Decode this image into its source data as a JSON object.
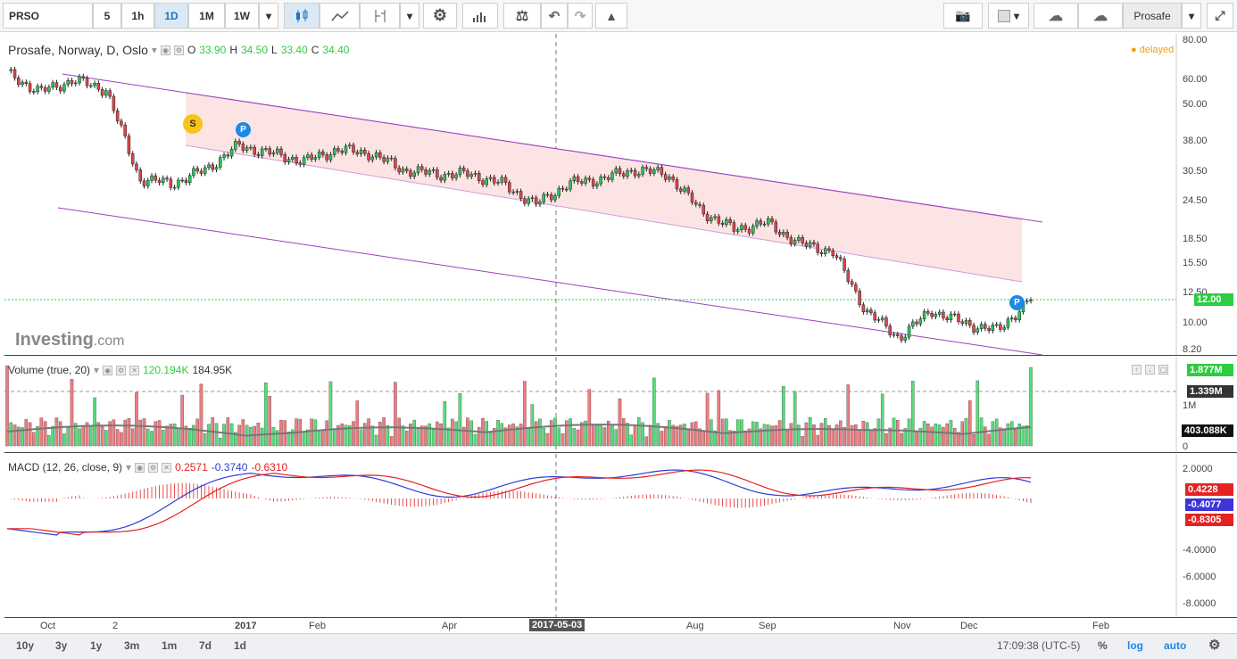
{
  "toolbar": {
    "symbol": "PRSO",
    "intervals": [
      "5",
      "1h",
      "1D",
      "1M",
      "1W"
    ],
    "active_interval": "1D",
    "profile": "Prosafe"
  },
  "main": {
    "title": "Prosafe, Norway, D, Oslo",
    "ohlc": {
      "o_label": "O",
      "o": "33.90",
      "h_label": "H",
      "h": "34.50",
      "l_label": "L",
      "l": "33.40",
      "c_label": "C",
      "c": "34.40"
    },
    "status": "delayed",
    "watermark": "Investing",
    "watermark_suffix": ".com"
  },
  "price_axis": {
    "ticks": [
      "80.00",
      "60.00",
      "50.00",
      "38.00",
      "30.50",
      "24.50",
      "18.50",
      "15.50",
      "12.50",
      "10.00",
      "8.20"
    ],
    "last": "12.00"
  },
  "markers": {
    "s": "S",
    "p": "P"
  },
  "volume": {
    "title": "Volume (true, 20)",
    "v1": "120.194K",
    "v2": "184.95K",
    "ticks": [
      "1M",
      "0"
    ],
    "tag_top": "1.877M",
    "tag_mid": "1.339M",
    "tag_ma": "403.088K"
  },
  "macd": {
    "title": "MACD (12, 26, close, 9)",
    "v1": "0.2571",
    "v2": "-0.3740",
    "v3": "-0.6310",
    "ticks": [
      "2.0000",
      "-4.0000",
      "-6.0000",
      "-8.0000"
    ],
    "tag_hist": "0.4228",
    "tag_macd": "-0.4077",
    "tag_signal": "-0.8305"
  },
  "time_axis": {
    "labels": [
      "Oct",
      "2",
      "2017",
      "Feb",
      "Apr",
      "Aug",
      "Sep",
      "Nov",
      "Dec",
      "Feb"
    ],
    "cursor": "2017-05-03"
  },
  "bottom": {
    "ranges": [
      "10y",
      "3y",
      "1y",
      "3m",
      "1m",
      "7d",
      "1d"
    ],
    "clock": "17:09:38 (UTC-5)",
    "pct": "%",
    "log": "log",
    "auto": "auto"
  },
  "colors": {
    "up": "#26c95b",
    "down": "#e0464b",
    "macd": "#2b3ed6",
    "signal": "#e52222",
    "channel": "#9b3fbf",
    "fill": "#fde4e4"
  },
  "chart_data": {
    "type": "candlestick",
    "approx_close": [
      [
        0,
        63
      ],
      [
        1,
        55
      ],
      [
        2,
        60
      ],
      [
        3,
        56
      ],
      [
        4,
        29
      ],
      [
        5,
        28
      ],
      [
        6,
        31
      ],
      [
        7,
        37
      ],
      [
        8,
        35
      ],
      [
        9,
        33
      ],
      [
        10,
        36
      ],
      [
        11,
        35
      ],
      [
        12,
        31
      ],
      [
        13,
        30
      ],
      [
        14,
        30
      ],
      [
        15,
        28
      ],
      [
        16,
        24
      ],
      [
        17,
        28
      ],
      [
        18,
        29
      ],
      [
        19,
        31
      ],
      [
        20,
        30
      ],
      [
        21,
        23
      ],
      [
        22,
        20
      ],
      [
        23,
        21
      ],
      [
        24,
        18
      ],
      [
        25,
        17
      ],
      [
        26,
        11
      ],
      [
        27,
        9
      ],
      [
        28,
        11
      ],
      [
        29,
        10
      ],
      [
        30,
        9.5
      ],
      [
        31,
        12
      ]
    ]
  }
}
